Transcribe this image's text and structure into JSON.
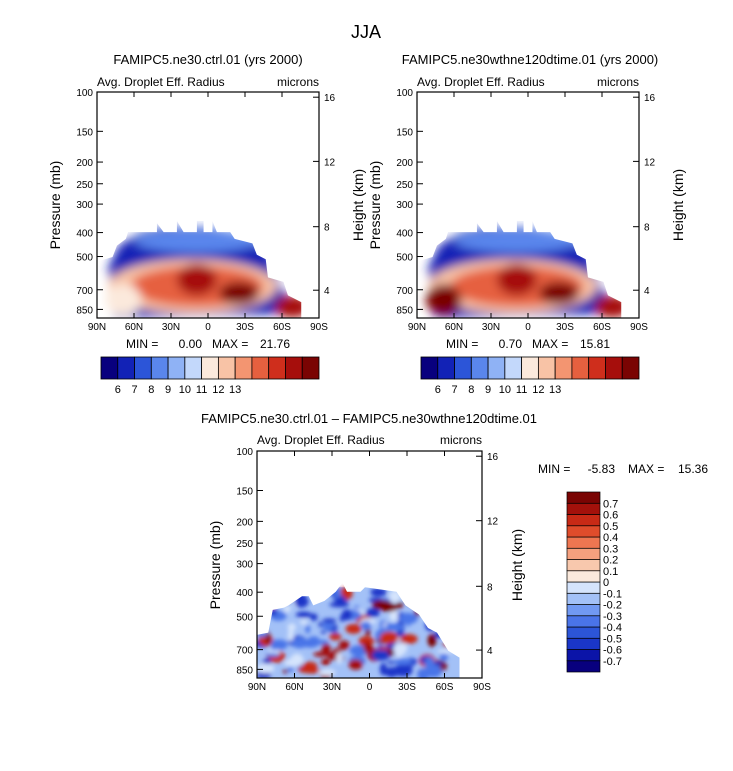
{
  "figure": {
    "title": "JJA"
  },
  "colors": {
    "palette13": [
      "#08007e",
      "#1222b6",
      "#2c55d8",
      "#5a86ec",
      "#8fb2f5",
      "#c3d8fb",
      "#fbe9dc",
      "#f8c3a6",
      "#f39571",
      "#e6603f",
      "#cf2e1c",
      "#a60e0c",
      "#7a0403"
    ],
    "palette16": [
      "#08007e",
      "#0b14a8",
      "#1a36c8",
      "#2c55d8",
      "#4a74e8",
      "#7199f2",
      "#a3c1f7",
      "#d5e4fc",
      "#fbe9dc",
      "#f8c8ad",
      "#f5a07e",
      "#ee7651",
      "#df4c2b",
      "#c82a16",
      "#a3110b",
      "#7a0403"
    ]
  },
  "chart_data": [
    {
      "id": "ctrl",
      "type": "heatmap",
      "title": "FAMIPC5.ne30.ctrl.01 (yrs 2000)",
      "subtitle_left": "Avg. Droplet Eff. Radius",
      "subtitle_right": "microns",
      "ylabel": "Pressure (mb)",
      "ylabel_right": "Height (km)",
      "x_ticks": [
        "90N",
        "60N",
        "30N",
        "0",
        "30S",
        "60S",
        "90S"
      ],
      "y_ticks": [
        "100",
        "150",
        "200",
        "250",
        "300",
        "400",
        "500",
        "700",
        "850"
      ],
      "y_ticks_right": [
        "16",
        "12",
        "8",
        "4"
      ],
      "stats_min_label": "MIN =",
      "stats_min": "0.00",
      "stats_max_label": "MAX =",
      "stats_max": "21.76",
      "colorbar_labels": [
        "6",
        "7",
        "8",
        "9",
        "10",
        "11",
        "12",
        "13"
      ],
      "grid": false
    },
    {
      "id": "exp",
      "type": "heatmap",
      "title": "FAMIPC5.ne30wthne120dtime.01 (yrs 2000)",
      "subtitle_left": "Avg. Droplet Eff. Radius",
      "subtitle_right": "microns",
      "ylabel": "Pressure (mb)",
      "ylabel_right": "Height (km)",
      "x_ticks": [
        "90N",
        "60N",
        "30N",
        "0",
        "30S",
        "60S",
        "90S"
      ],
      "y_ticks": [
        "100",
        "150",
        "200",
        "250",
        "300",
        "400",
        "500",
        "700",
        "850"
      ],
      "y_ticks_right": [
        "16",
        "12",
        "8",
        "4"
      ],
      "stats_min_label": "MIN =",
      "stats_min": "0.70",
      "stats_max_label": "MAX =",
      "stats_max": "15.81",
      "colorbar_labels": [
        "6",
        "7",
        "8",
        "9",
        "10",
        "11",
        "12",
        "13"
      ],
      "grid": false
    },
    {
      "id": "diff",
      "type": "heatmap",
      "title": "FAMIPC5.ne30.ctrl.01 – FAMIPC5.ne30wthne120dtime.01",
      "subtitle_left": "Avg. Droplet Eff. Radius",
      "subtitle_right": "microns",
      "ylabel": "Pressure (mb)",
      "ylabel_right": "Height (km)",
      "x_ticks": [
        "90N",
        "60N",
        "30N",
        "0",
        "30S",
        "60S",
        "90S"
      ],
      "y_ticks": [
        "100",
        "150",
        "200",
        "250",
        "300",
        "400",
        "500",
        "700",
        "850"
      ],
      "y_ticks_right": [
        "16",
        "12",
        "8",
        "4"
      ],
      "stats_min_label": "MIN =",
      "stats_min": "-5.83",
      "stats_max_label": "MAX =",
      "stats_max": "15.36",
      "colorbar_labels": [
        "0.7",
        "0.6",
        "0.5",
        "0.4",
        "0.3",
        "0.2",
        "0.1",
        "0",
        "-0.1",
        "-0.2",
        "-0.3",
        "-0.4",
        "-0.5",
        "-0.6",
        "-0.7"
      ],
      "grid": false
    }
  ]
}
